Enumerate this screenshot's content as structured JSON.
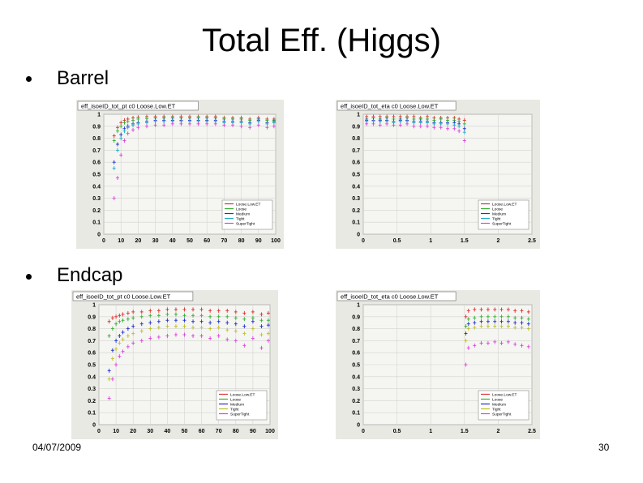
{
  "slide": {
    "title": "Total Eff. (Higgs)",
    "date": "04/07/2009",
    "page_number": "30"
  },
  "sections": [
    {
      "label": "Barrel"
    },
    {
      "label": "Endcap"
    }
  ],
  "chart_data": [
    {
      "id": "barrel-pt",
      "type": "scatter",
      "title": "eff_isoeID_tot_pt c0 Loose.Low.ET",
      "x_ticks": [
        "0",
        "10",
        "20",
        "30",
        "40",
        "50",
        "60",
        "70",
        "80",
        "90",
        "100"
      ],
      "y_ticks": [
        "0",
        "0.1",
        "0.2",
        "0.3",
        "0.4",
        "0.5",
        "0.6",
        "0.7",
        "0.8",
        "0.9",
        "1"
      ],
      "xlim": [
        0,
        100
      ],
      "ylim": [
        0,
        1
      ],
      "grid": true,
      "legend_placement": "bottom-right",
      "x": [
        6,
        8,
        10,
        12,
        14,
        17,
        20,
        25,
        30,
        35,
        40,
        45,
        50,
        55,
        60,
        65,
        70,
        75,
        80,
        85,
        90,
        95,
        99
      ],
      "series": [
        {
          "name": "Loose.Low.ET",
          "color": "#e03030",
          "values": [
            0.82,
            0.89,
            0.93,
            0.95,
            0.96,
            0.97,
            0.975,
            0.98,
            0.98,
            0.98,
            0.98,
            0.98,
            0.98,
            0.98,
            0.98,
            0.98,
            0.97,
            0.97,
            0.97,
            0.96,
            0.97,
            0.96,
            0.96
          ]
        },
        {
          "name": "Loose",
          "color": "#30b030",
          "values": [
            0.78,
            0.86,
            0.9,
            0.93,
            0.94,
            0.95,
            0.96,
            0.965,
            0.97,
            0.97,
            0.97,
            0.97,
            0.97,
            0.97,
            0.97,
            0.97,
            0.96,
            0.96,
            0.96,
            0.95,
            0.96,
            0.95,
            0.95
          ]
        },
        {
          "name": "Medium",
          "color": "#2030d0",
          "values": [
            0.6,
            0.75,
            0.83,
            0.88,
            0.9,
            0.92,
            0.93,
            0.94,
            0.95,
            0.95,
            0.95,
            0.95,
            0.95,
            0.95,
            0.95,
            0.95,
            0.94,
            0.94,
            0.94,
            0.93,
            0.95,
            0.93,
            0.94
          ]
        },
        {
          "name": "Tight",
          "color": "#20b0c0",
          "values": [
            0.55,
            0.7,
            0.8,
            0.86,
            0.89,
            0.91,
            0.92,
            0.93,
            0.94,
            0.94,
            0.94,
            0.94,
            0.94,
            0.94,
            0.94,
            0.94,
            0.93,
            0.93,
            0.93,
            0.92,
            0.94,
            0.92,
            0.93
          ]
        },
        {
          "name": "SuperTight",
          "color": "#e040e0",
          "values": [
            0.3,
            0.47,
            0.66,
            0.78,
            0.84,
            0.87,
            0.89,
            0.9,
            0.91,
            0.91,
            0.92,
            0.92,
            0.92,
            0.92,
            0.92,
            0.92,
            0.91,
            0.91,
            0.9,
            0.89,
            0.91,
            0.89,
            0.9
          ]
        }
      ]
    },
    {
      "id": "barrel-eta",
      "type": "scatter",
      "title": "eff_isoeID_tot_eta c0 Loose.Low.ET",
      "x_ticks": [
        "0",
        "0.5",
        "1",
        "1.5",
        "2",
        "2.5"
      ],
      "y_ticks": [
        "0",
        "0.1",
        "0.2",
        "0.3",
        "0.4",
        "0.5",
        "0.6",
        "0.7",
        "0.8",
        "0.9",
        "1"
      ],
      "xlim": [
        0,
        2.5
      ],
      "ylim": [
        0,
        1
      ],
      "grid": true,
      "legend_placement": "bottom-right",
      "x": [
        0.05,
        0.15,
        0.25,
        0.35,
        0.45,
        0.55,
        0.65,
        0.75,
        0.85,
        0.95,
        1.05,
        1.15,
        1.25,
        1.35,
        1.42,
        1.5
      ],
      "series": [
        {
          "name": "Loose.Low.ET",
          "color": "#e03030",
          "values": [
            0.98,
            0.98,
            0.98,
            0.98,
            0.98,
            0.98,
            0.98,
            0.98,
            0.97,
            0.98,
            0.97,
            0.97,
            0.97,
            0.97,
            0.96,
            0.95
          ]
        },
        {
          "name": "Loose",
          "color": "#30b030",
          "values": [
            0.96,
            0.97,
            0.96,
            0.97,
            0.96,
            0.96,
            0.97,
            0.96,
            0.96,
            0.96,
            0.95,
            0.96,
            0.95,
            0.95,
            0.94,
            0.92
          ]
        },
        {
          "name": "Medium",
          "color": "#2030d0",
          "values": [
            0.95,
            0.95,
            0.95,
            0.95,
            0.94,
            0.95,
            0.95,
            0.94,
            0.94,
            0.94,
            0.93,
            0.93,
            0.93,
            0.93,
            0.92,
            0.88
          ]
        },
        {
          "name": "Tight",
          "color": "#20b0c0",
          "values": [
            0.94,
            0.94,
            0.94,
            0.94,
            0.93,
            0.94,
            0.94,
            0.93,
            0.93,
            0.93,
            0.92,
            0.92,
            0.92,
            0.91,
            0.9,
            0.85
          ]
        },
        {
          "name": "SuperTight",
          "color": "#e040e0",
          "values": [
            0.92,
            0.92,
            0.91,
            0.92,
            0.91,
            0.91,
            0.92,
            0.9,
            0.9,
            0.9,
            0.89,
            0.89,
            0.88,
            0.88,
            0.86,
            0.78
          ]
        }
      ]
    },
    {
      "id": "endcap-pt",
      "type": "scatter",
      "title": "eff_isoeID_tot_pt c0 Loose.Low.ET",
      "x_ticks": [
        "0",
        "10",
        "20",
        "30",
        "40",
        "50",
        "60",
        "70",
        "80",
        "90",
        "100"
      ],
      "y_ticks": [
        "0",
        "0.1",
        "0.2",
        "0.3",
        "0.4",
        "0.5",
        "0.6",
        "0.7",
        "0.8",
        "0.9",
        "1"
      ],
      "xlim": [
        0,
        100
      ],
      "ylim": [
        0,
        1
      ],
      "grid": true,
      "legend_placement": "bottom-right",
      "x": [
        6,
        8,
        10,
        12,
        14,
        17,
        20,
        25,
        30,
        35,
        40,
        45,
        50,
        55,
        60,
        65,
        70,
        75,
        80,
        85,
        90,
        95,
        99
      ],
      "series": [
        {
          "name": "Loose.Low.ET",
          "color": "#e03030",
          "values": [
            0.86,
            0.89,
            0.9,
            0.91,
            0.92,
            0.93,
            0.94,
            0.94,
            0.95,
            0.95,
            0.96,
            0.96,
            0.96,
            0.96,
            0.96,
            0.95,
            0.95,
            0.95,
            0.94,
            0.93,
            0.94,
            0.92,
            0.93
          ]
        },
        {
          "name": "Loose",
          "color": "#30b030",
          "values": [
            0.74,
            0.8,
            0.84,
            0.86,
            0.87,
            0.88,
            0.89,
            0.9,
            0.91,
            0.91,
            0.92,
            0.92,
            0.91,
            0.91,
            0.91,
            0.9,
            0.9,
            0.9,
            0.89,
            0.88,
            0.89,
            0.87,
            0.87
          ]
        },
        {
          "name": "Medium",
          "color": "#2030d0",
          "values": [
            0.45,
            0.62,
            0.7,
            0.74,
            0.77,
            0.8,
            0.82,
            0.84,
            0.85,
            0.86,
            0.87,
            0.87,
            0.87,
            0.86,
            0.86,
            0.85,
            0.86,
            0.85,
            0.84,
            0.82,
            0.86,
            0.82,
            0.83
          ]
        },
        {
          "name": "Tight",
          "color": "#c0c020",
          "values": [
            0.38,
            0.55,
            0.63,
            0.68,
            0.71,
            0.74,
            0.76,
            0.78,
            0.8,
            0.81,
            0.82,
            0.82,
            0.82,
            0.81,
            0.81,
            0.8,
            0.81,
            0.79,
            0.78,
            0.76,
            0.8,
            0.75,
            0.76
          ]
        },
        {
          "name": "SuperTight",
          "color": "#e040e0",
          "values": [
            0.22,
            0.38,
            0.5,
            0.57,
            0.61,
            0.65,
            0.68,
            0.7,
            0.72,
            0.73,
            0.74,
            0.75,
            0.75,
            0.74,
            0.74,
            0.72,
            0.74,
            0.71,
            0.7,
            0.66,
            0.72,
            0.64,
            0.7
          ]
        }
      ]
    },
    {
      "id": "endcap-eta",
      "type": "scatter",
      "title": "eff_isoeID_tot_eta c0 Loose.Low.ET",
      "x_ticks": [
        "0",
        "0.5",
        "1",
        "1.5",
        "2",
        "2.5"
      ],
      "y_ticks": [
        "0",
        "0.1",
        "0.2",
        "0.3",
        "0.4",
        "0.5",
        "0.6",
        "0.7",
        "0.8",
        "0.9",
        "1"
      ],
      "xlim": [
        0,
        2.5
      ],
      "ylim": [
        0,
        1
      ],
      "grid": true,
      "legend_placement": "bottom-right",
      "x": [
        1.52,
        1.56,
        1.65,
        1.75,
        1.85,
        1.95,
        2.05,
        2.15,
        2.25,
        2.35,
        2.45
      ],
      "series": [
        {
          "name": "Loose.Low.ET",
          "color": "#e03030",
          "values": [
            0.9,
            0.95,
            0.96,
            0.96,
            0.96,
            0.96,
            0.96,
            0.96,
            0.95,
            0.95,
            0.94
          ]
        },
        {
          "name": "Loose",
          "color": "#30b030",
          "values": [
            0.82,
            0.88,
            0.89,
            0.9,
            0.9,
            0.9,
            0.9,
            0.9,
            0.89,
            0.89,
            0.88
          ]
        },
        {
          "name": "Medium",
          "color": "#2030d0",
          "values": [
            0.76,
            0.84,
            0.85,
            0.86,
            0.86,
            0.86,
            0.86,
            0.86,
            0.85,
            0.85,
            0.84
          ]
        },
        {
          "name": "Tight",
          "color": "#c0c020",
          "values": [
            0.7,
            0.8,
            0.81,
            0.82,
            0.82,
            0.82,
            0.82,
            0.82,
            0.81,
            0.81,
            0.8
          ]
        },
        {
          "name": "SuperTight",
          "color": "#e040e0",
          "values": [
            0.5,
            0.64,
            0.66,
            0.68,
            0.68,
            0.69,
            0.68,
            0.69,
            0.67,
            0.66,
            0.65
          ]
        }
      ]
    }
  ]
}
